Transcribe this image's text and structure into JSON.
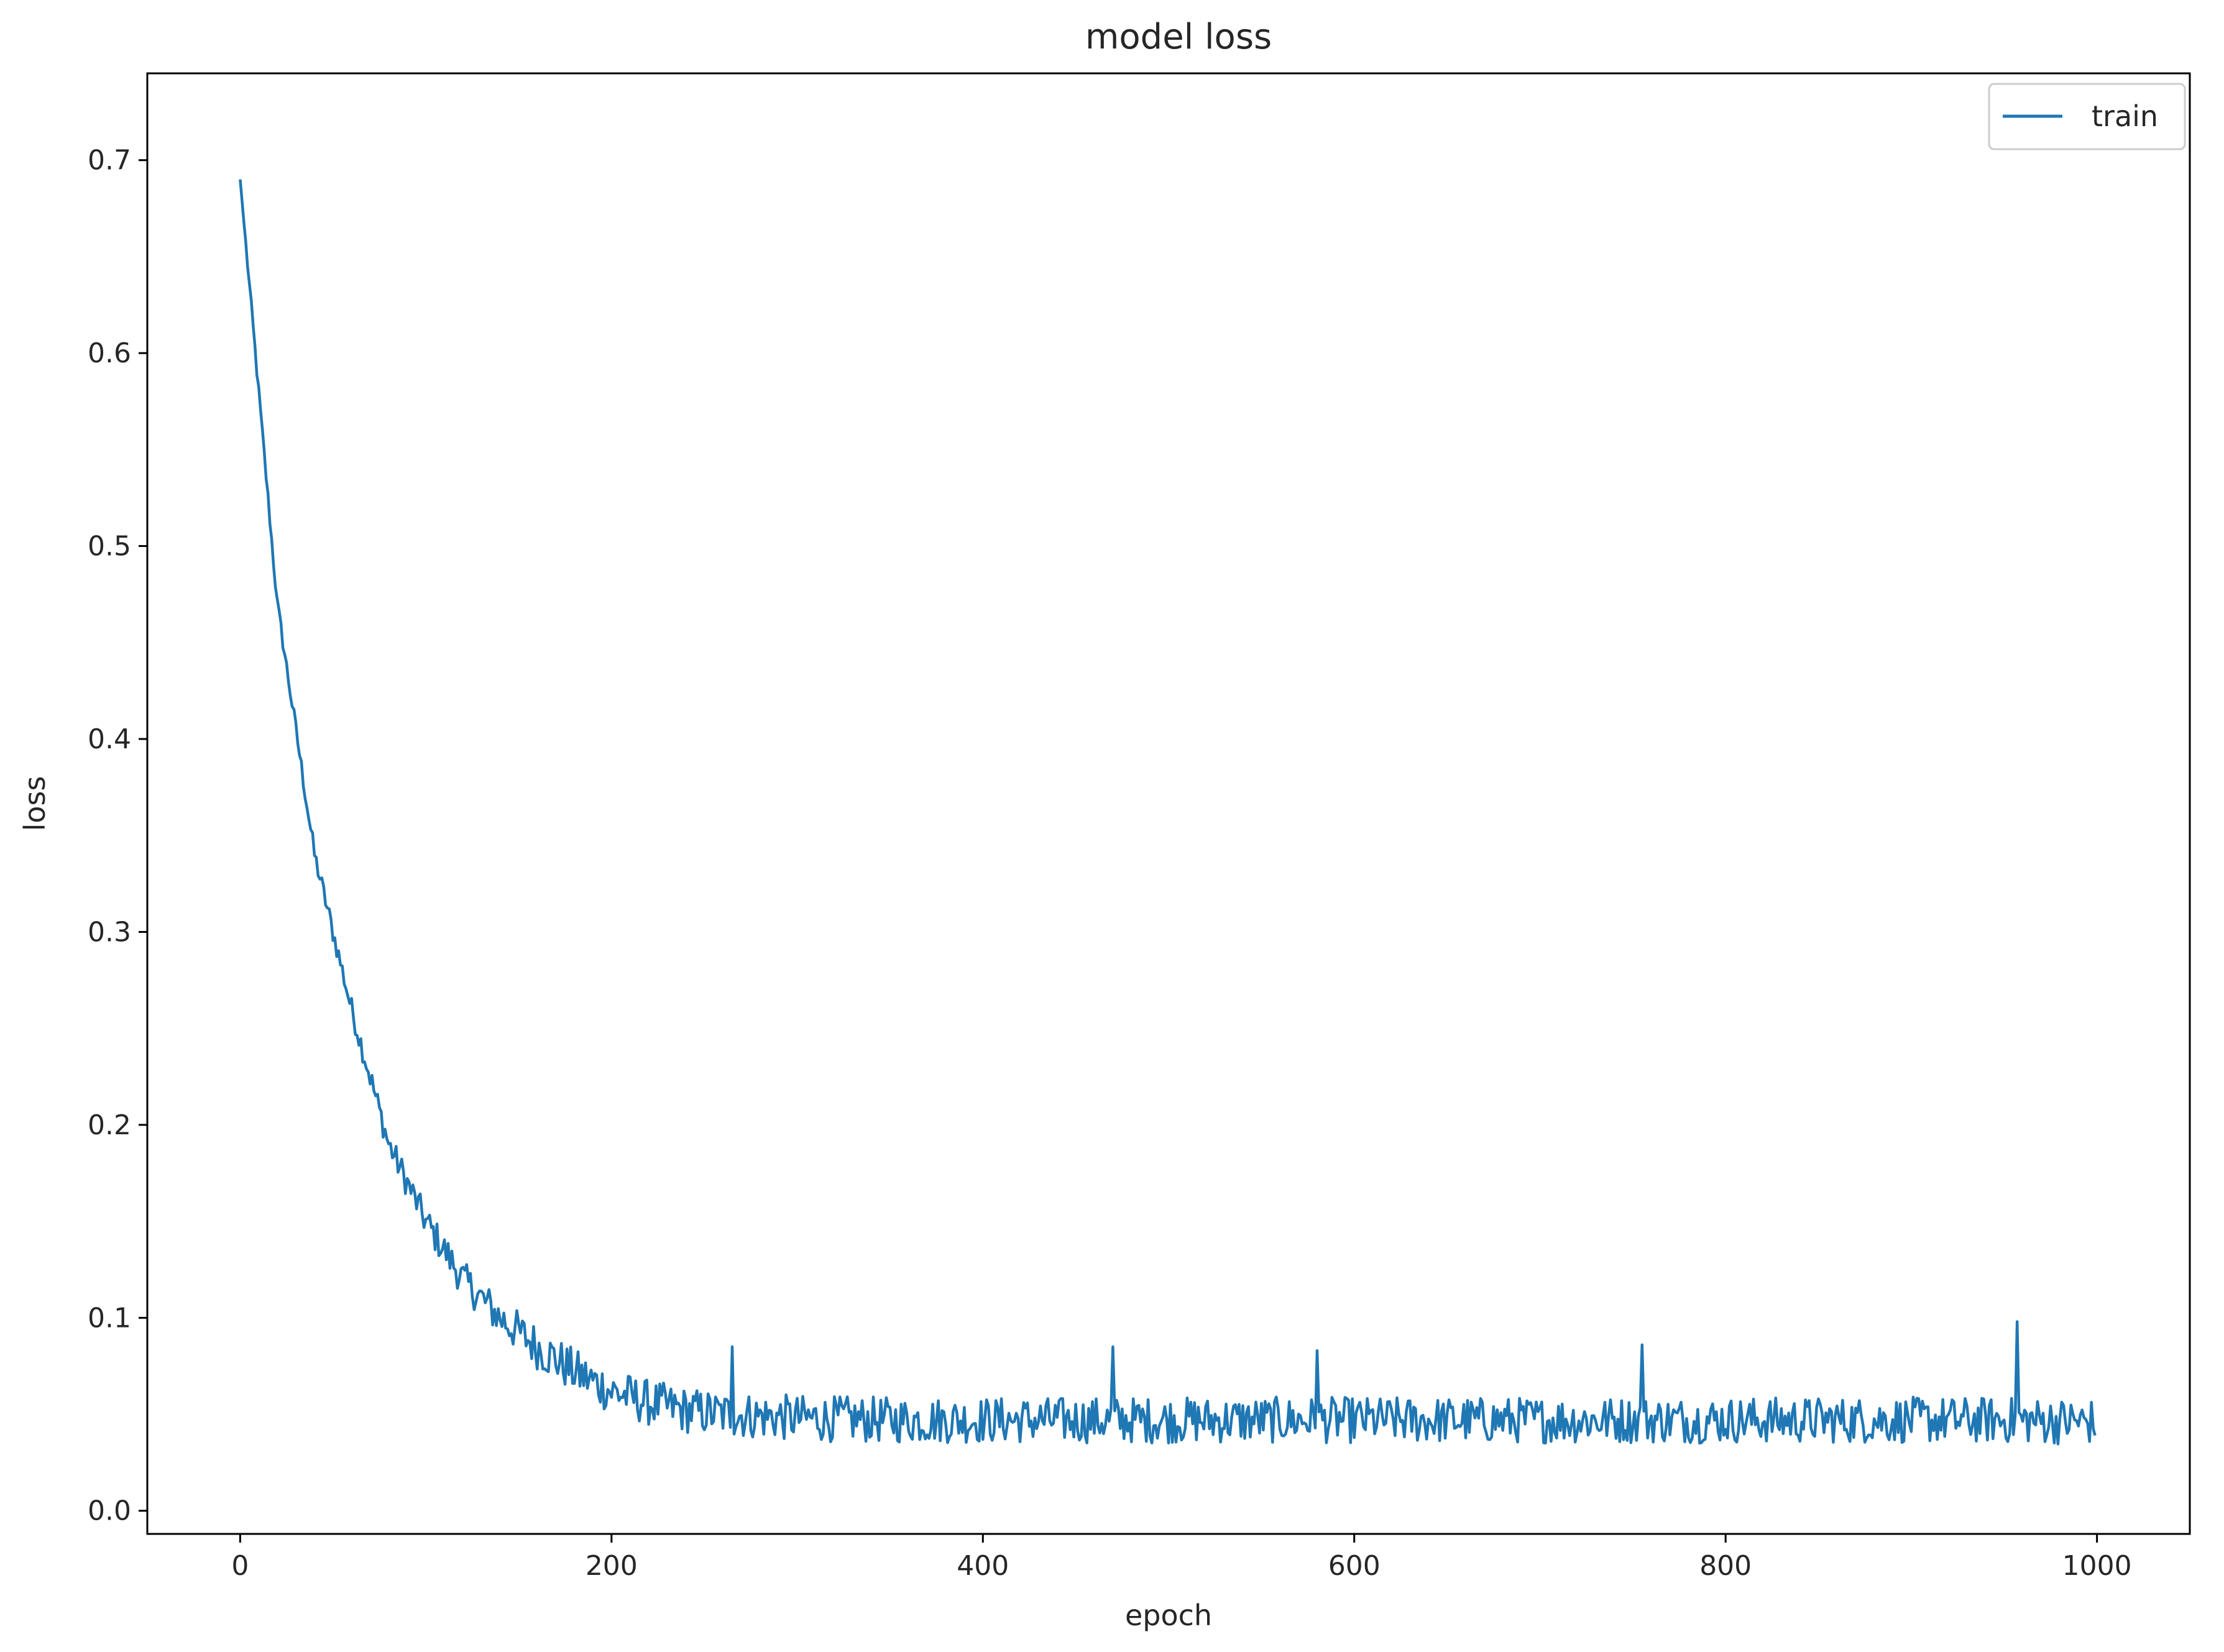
{
  "chart_data": {
    "type": "line",
    "title": "model loss",
    "xlabel": "epoch",
    "ylabel": "loss",
    "xlim": [
      -50,
      1050
    ],
    "ylim": [
      -0.012,
      0.745
    ],
    "xticks": [
      0,
      200,
      400,
      600,
      800,
      1000
    ],
    "yticks": [
      0.0,
      0.1,
      0.2,
      0.3,
      0.4,
      0.5,
      0.6,
      0.7
    ],
    "xtick_labels": [
      "0",
      "200",
      "400",
      "600",
      "800",
      "1000"
    ],
    "ytick_labels": [
      "0.0",
      "0.1",
      "0.2",
      "0.3",
      "0.4",
      "0.5",
      "0.6",
      "0.7"
    ],
    "grid": false,
    "legend_position": "upper right",
    "series": [
      {
        "name": "train",
        "color": "#1f77b4",
        "x": [
          0,
          20,
          40,
          60,
          80,
          100,
          120,
          140,
          160,
          180,
          200,
          220,
          240,
          260,
          280,
          300,
          350,
          400,
          450,
          500,
          550,
          600,
          650,
          700,
          750,
          800,
          850,
          900,
          950,
          999
        ],
        "y": [
          0.69,
          0.47,
          0.34,
          0.26,
          0.19,
          0.15,
          0.12,
          0.1,
          0.085,
          0.072,
          0.062,
          0.056,
          0.052,
          0.05,
          0.049,
          0.048,
          0.047,
          0.047,
          0.047,
          0.047,
          0.047,
          0.047,
          0.047,
          0.047,
          0.047,
          0.047,
          0.047,
          0.047,
          0.047,
          0.046
        ],
        "noise_amplitude": 0.012,
        "spikes": [
          {
            "x": 265,
            "y": 0.085
          },
          {
            "x": 470,
            "y": 0.085
          },
          {
            "x": 580,
            "y": 0.083
          },
          {
            "x": 755,
            "y": 0.086
          },
          {
            "x": 957,
            "y": 0.098
          }
        ]
      }
    ]
  }
}
